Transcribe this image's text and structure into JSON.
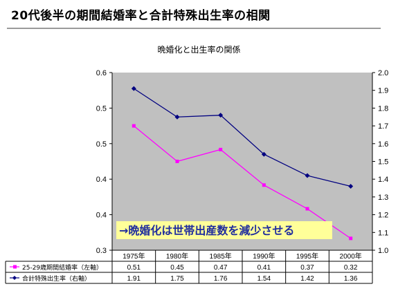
{
  "page_title": "20代後半の期間結婚率と合計特殊出生率の相関",
  "colors": {
    "plot_bg": "#c0c0c0",
    "marriage_line": "#ff00ff",
    "fertility_line": "#000080",
    "callout_bg": "#ffff99",
    "callout_text": "#1f2c9e",
    "title_rule": "#9a9a9a"
  },
  "callout": "→晩婚化は世帯出産数を減少させる",
  "chart_data": {
    "type": "line",
    "title": "晩婚化と出生率の関係",
    "categories": [
      "1975年",
      "1980年",
      "1985年",
      "1990年",
      "1995年",
      "2000年"
    ],
    "left_axis": {
      "ylim": [
        0.3,
        0.6
      ],
      "tick_labels": [
        "0.6",
        "0.5",
        "0.5",
        "0.4",
        "0.4",
        "0.3"
      ]
    },
    "right_axis": {
      "ylim": [
        1.0,
        2.0
      ],
      "tick_labels": [
        "2.0",
        "1.9",
        "1.8",
        "1.7",
        "1.6",
        "1.5",
        "1.4",
        "1.3",
        "1.2",
        "1.1",
        "1.0"
      ]
    },
    "series": [
      {
        "name": "25-29歳期間結婚率（左軸）",
        "axis": "left",
        "color": "#ff00ff",
        "marker": "square",
        "values": [
          0.51,
          0.45,
          0.47,
          0.41,
          0.37,
          0.32
        ],
        "table_values": [
          "0.51",
          "0.45",
          "0.47",
          "0.41",
          "0.37",
          "0.32"
        ]
      },
      {
        "name": "合計特殊出生率（右軸）",
        "axis": "right",
        "color": "#000080",
        "marker": "diamond",
        "values": [
          1.91,
          1.75,
          1.76,
          1.54,
          1.42,
          1.36
        ],
        "table_values": [
          "1.91",
          "1.75",
          "1.76",
          "1.54",
          "1.42",
          "1.36"
        ]
      }
    ],
    "grid": false,
    "legend_placement": "data-table"
  }
}
